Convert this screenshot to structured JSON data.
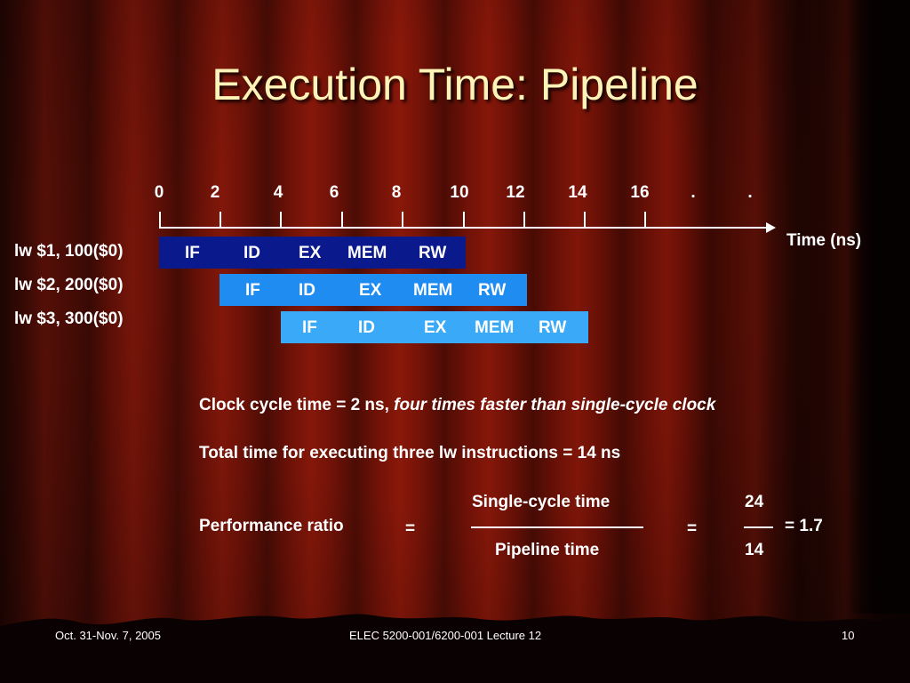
{
  "title": "Execution Time: Pipeline",
  "timeline": {
    "ticks": [
      "0",
      "2",
      "4",
      "6",
      "8",
      "10",
      "12",
      "14",
      "16",
      ".",
      "."
    ],
    "axis_label": "Time (ns)"
  },
  "instructions": [
    {
      "label": "lw $1, 100($0)",
      "color": "#0a1a8c",
      "stages": [
        "IF",
        "ID",
        "EX",
        "MEM",
        "RW"
      ]
    },
    {
      "label": "lw $2, 200($0)",
      "color": "#1e8cf0",
      "stages": [
        "IF",
        "ID",
        "EX",
        "MEM",
        "RW"
      ]
    },
    {
      "label": "lw $3, 300($0)",
      "color": "#3aaaf8",
      "stages": [
        "IF",
        "ID",
        "EX",
        "MEM",
        "RW"
      ]
    }
  ],
  "notes": {
    "clock_plain": "Clock cycle time = 2 ns, ",
    "clock_italic": "four times faster than single-cycle clock",
    "total": "Total time for executing three lw instructions = 14 ns"
  },
  "performance": {
    "label": "Performance ratio",
    "eq1": "=",
    "numerator": "Single-cycle time",
    "denominator": "Pipeline time",
    "eq2": "=",
    "num_value": "24",
    "den_value": "14",
    "result": "=  1.7"
  },
  "footer": {
    "date": "Oct. 31-Nov. 7, 2005",
    "course": "ELEC 5200-001/6200-001 Lecture 12",
    "page": "10"
  }
}
